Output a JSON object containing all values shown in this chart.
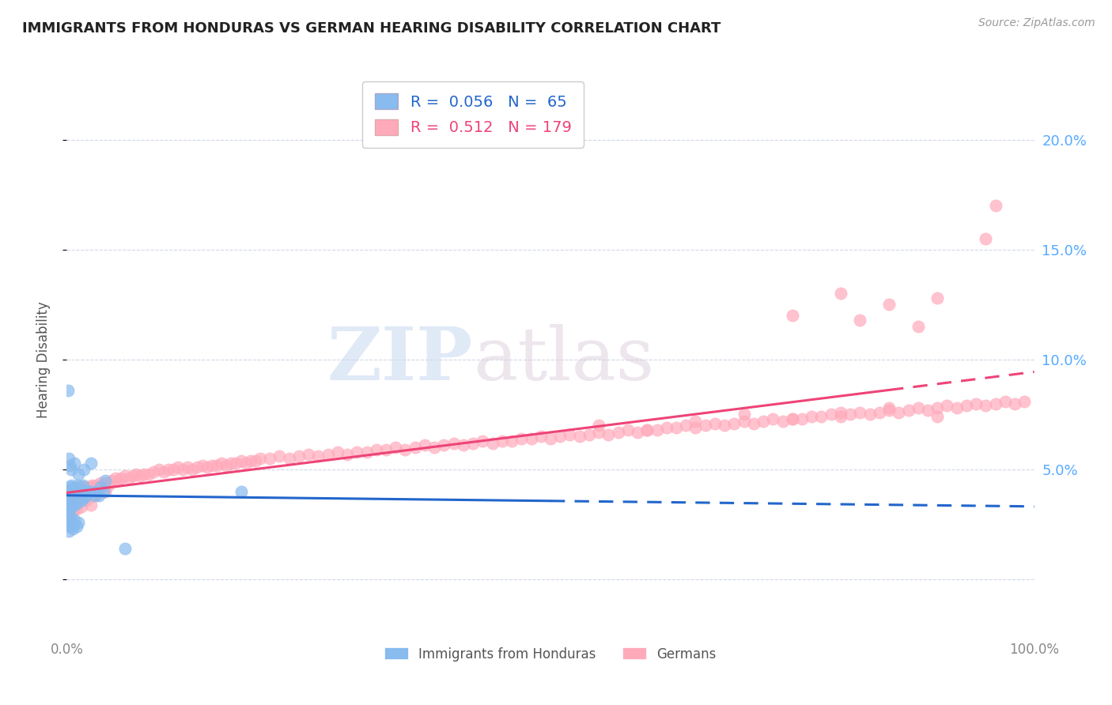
{
  "title": "IMMIGRANTS FROM HONDURAS VS GERMAN HEARING DISABILITY CORRELATION CHART",
  "source": "Source: ZipAtlas.com",
  "ylabel": "Hearing Disability",
  "legend_label1": "Immigrants from Honduras",
  "legend_label2": "Germans",
  "watermark_zip": "ZIP",
  "watermark_atlas": "atlas",
  "blue_color": "#88bbee",
  "pink_color": "#ffaabb",
  "blue_line_color": "#2266cc",
  "pink_line_color": "#ee4477",
  "right_yticks": [
    "20.0%",
    "15.0%",
    "10.0%",
    "5.0%",
    ""
  ],
  "right_ytick_vals": [
    0.2,
    0.15,
    0.1,
    0.05,
    0.0
  ],
  "xlim": [
    0.0,
    1.0
  ],
  "ylim": [
    -0.025,
    0.225
  ],
  "background": "#ffffff",
  "grid_color": "#d0d8e8",
  "blue_scatter_x": [
    0.001,
    0.001,
    0.001,
    0.002,
    0.002,
    0.002,
    0.003,
    0.003,
    0.003,
    0.004,
    0.004,
    0.004,
    0.005,
    0.005,
    0.005,
    0.006,
    0.006,
    0.007,
    0.007,
    0.008,
    0.008,
    0.009,
    0.009,
    0.01,
    0.01,
    0.011,
    0.011,
    0.012,
    0.012,
    0.013,
    0.014,
    0.015,
    0.015,
    0.016,
    0.017,
    0.018,
    0.019,
    0.02,
    0.022,
    0.025,
    0.028,
    0.03,
    0.033,
    0.035,
    0.038,
    0.04,
    0.002,
    0.003,
    0.004,
    0.005,
    0.006,
    0.007,
    0.008,
    0.01,
    0.012,
    0.002,
    0.003,
    0.005,
    0.008,
    0.012,
    0.018,
    0.025,
    0.18,
    0.001,
    0.06
  ],
  "blue_scatter_y": [
    0.033,
    0.036,
    0.04,
    0.03,
    0.035,
    0.038,
    0.032,
    0.036,
    0.041,
    0.034,
    0.037,
    0.042,
    0.033,
    0.038,
    0.043,
    0.035,
    0.04,
    0.036,
    0.041,
    0.034,
    0.039,
    0.037,
    0.042,
    0.036,
    0.04,
    0.035,
    0.039,
    0.037,
    0.043,
    0.038,
    0.04,
    0.036,
    0.041,
    0.038,
    0.043,
    0.037,
    0.04,
    0.038,
    0.04,
    0.04,
    0.038,
    0.04,
    0.038,
    0.042,
    0.04,
    0.045,
    0.022,
    0.024,
    0.026,
    0.028,
    0.023,
    0.025,
    0.027,
    0.024,
    0.026,
    0.055,
    0.052,
    0.05,
    0.053,
    0.048,
    0.05,
    0.053,
    0.04,
    0.086,
    0.014
  ],
  "pink_scatter_x": [
    0.001,
    0.002,
    0.003,
    0.004,
    0.005,
    0.006,
    0.007,
    0.008,
    0.009,
    0.01,
    0.011,
    0.012,
    0.013,
    0.014,
    0.015,
    0.016,
    0.017,
    0.018,
    0.019,
    0.02,
    0.022,
    0.024,
    0.026,
    0.028,
    0.03,
    0.032,
    0.035,
    0.038,
    0.04,
    0.043,
    0.046,
    0.05,
    0.053,
    0.056,
    0.06,
    0.064,
    0.068,
    0.072,
    0.076,
    0.08,
    0.085,
    0.09,
    0.095,
    0.1,
    0.105,
    0.11,
    0.115,
    0.12,
    0.125,
    0.13,
    0.135,
    0.14,
    0.145,
    0.15,
    0.155,
    0.16,
    0.165,
    0.17,
    0.175,
    0.18,
    0.185,
    0.19,
    0.195,
    0.2,
    0.21,
    0.22,
    0.23,
    0.24,
    0.25,
    0.26,
    0.27,
    0.28,
    0.29,
    0.3,
    0.31,
    0.32,
    0.33,
    0.34,
    0.35,
    0.36,
    0.37,
    0.38,
    0.39,
    0.4,
    0.41,
    0.42,
    0.43,
    0.44,
    0.45,
    0.46,
    0.47,
    0.48,
    0.49,
    0.5,
    0.51,
    0.52,
    0.53,
    0.54,
    0.55,
    0.56,
    0.57,
    0.58,
    0.59,
    0.6,
    0.61,
    0.62,
    0.63,
    0.64,
    0.65,
    0.66,
    0.67,
    0.68,
    0.69,
    0.7,
    0.71,
    0.72,
    0.73,
    0.74,
    0.75,
    0.76,
    0.77,
    0.78,
    0.79,
    0.8,
    0.81,
    0.82,
    0.83,
    0.84,
    0.85,
    0.86,
    0.87,
    0.88,
    0.89,
    0.9,
    0.91,
    0.92,
    0.93,
    0.94,
    0.95,
    0.96,
    0.97,
    0.98,
    0.99,
    0.002,
    0.004,
    0.006,
    0.008,
    0.01,
    0.012,
    0.015,
    0.02,
    0.025,
    0.03,
    0.04,
    0.001,
    0.003,
    0.005,
    0.55,
    0.6,
    0.65,
    0.7,
    0.75,
    0.8,
    0.85,
    0.9,
    0.75,
    0.8,
    0.82,
    0.85,
    0.88,
    0.9,
    0.95,
    0.96
  ],
  "pink_scatter_y": [
    0.036,
    0.038,
    0.035,
    0.037,
    0.039,
    0.036,
    0.038,
    0.037,
    0.039,
    0.038,
    0.04,
    0.039,
    0.041,
    0.04,
    0.042,
    0.041,
    0.04,
    0.042,
    0.041,
    0.04,
    0.041,
    0.042,
    0.043,
    0.041,
    0.043,
    0.042,
    0.044,
    0.043,
    0.044,
    0.043,
    0.045,
    0.046,
    0.045,
    0.046,
    0.047,
    0.046,
    0.047,
    0.048,
    0.047,
    0.048,
    0.048,
    0.049,
    0.05,
    0.049,
    0.05,
    0.05,
    0.051,
    0.05,
    0.051,
    0.05,
    0.051,
    0.052,
    0.051,
    0.052,
    0.052,
    0.053,
    0.052,
    0.053,
    0.053,
    0.054,
    0.053,
    0.054,
    0.054,
    0.055,
    0.055,
    0.056,
    0.055,
    0.056,
    0.057,
    0.056,
    0.057,
    0.058,
    0.057,
    0.058,
    0.058,
    0.059,
    0.059,
    0.06,
    0.059,
    0.06,
    0.061,
    0.06,
    0.061,
    0.062,
    0.061,
    0.062,
    0.063,
    0.062,
    0.063,
    0.063,
    0.064,
    0.064,
    0.065,
    0.064,
    0.065,
    0.066,
    0.065,
    0.066,
    0.067,
    0.066,
    0.067,
    0.068,
    0.067,
    0.068,
    0.068,
    0.069,
    0.069,
    0.07,
    0.069,
    0.07,
    0.071,
    0.07,
    0.071,
    0.072,
    0.071,
    0.072,
    0.073,
    0.072,
    0.073,
    0.073,
    0.074,
    0.074,
    0.075,
    0.074,
    0.075,
    0.076,
    0.075,
    0.076,
    0.077,
    0.076,
    0.077,
    0.078,
    0.077,
    0.078,
    0.079,
    0.078,
    0.079,
    0.08,
    0.079,
    0.08,
    0.081,
    0.08,
    0.081,
    0.03,
    0.033,
    0.031,
    0.034,
    0.032,
    0.035,
    0.033,
    0.036,
    0.034,
    0.038,
    0.04,
    0.028,
    0.029,
    0.031,
    0.07,
    0.068,
    0.072,
    0.075,
    0.073,
    0.076,
    0.078,
    0.074,
    0.12,
    0.13,
    0.118,
    0.125,
    0.115,
    0.128,
    0.155,
    0.17
  ]
}
